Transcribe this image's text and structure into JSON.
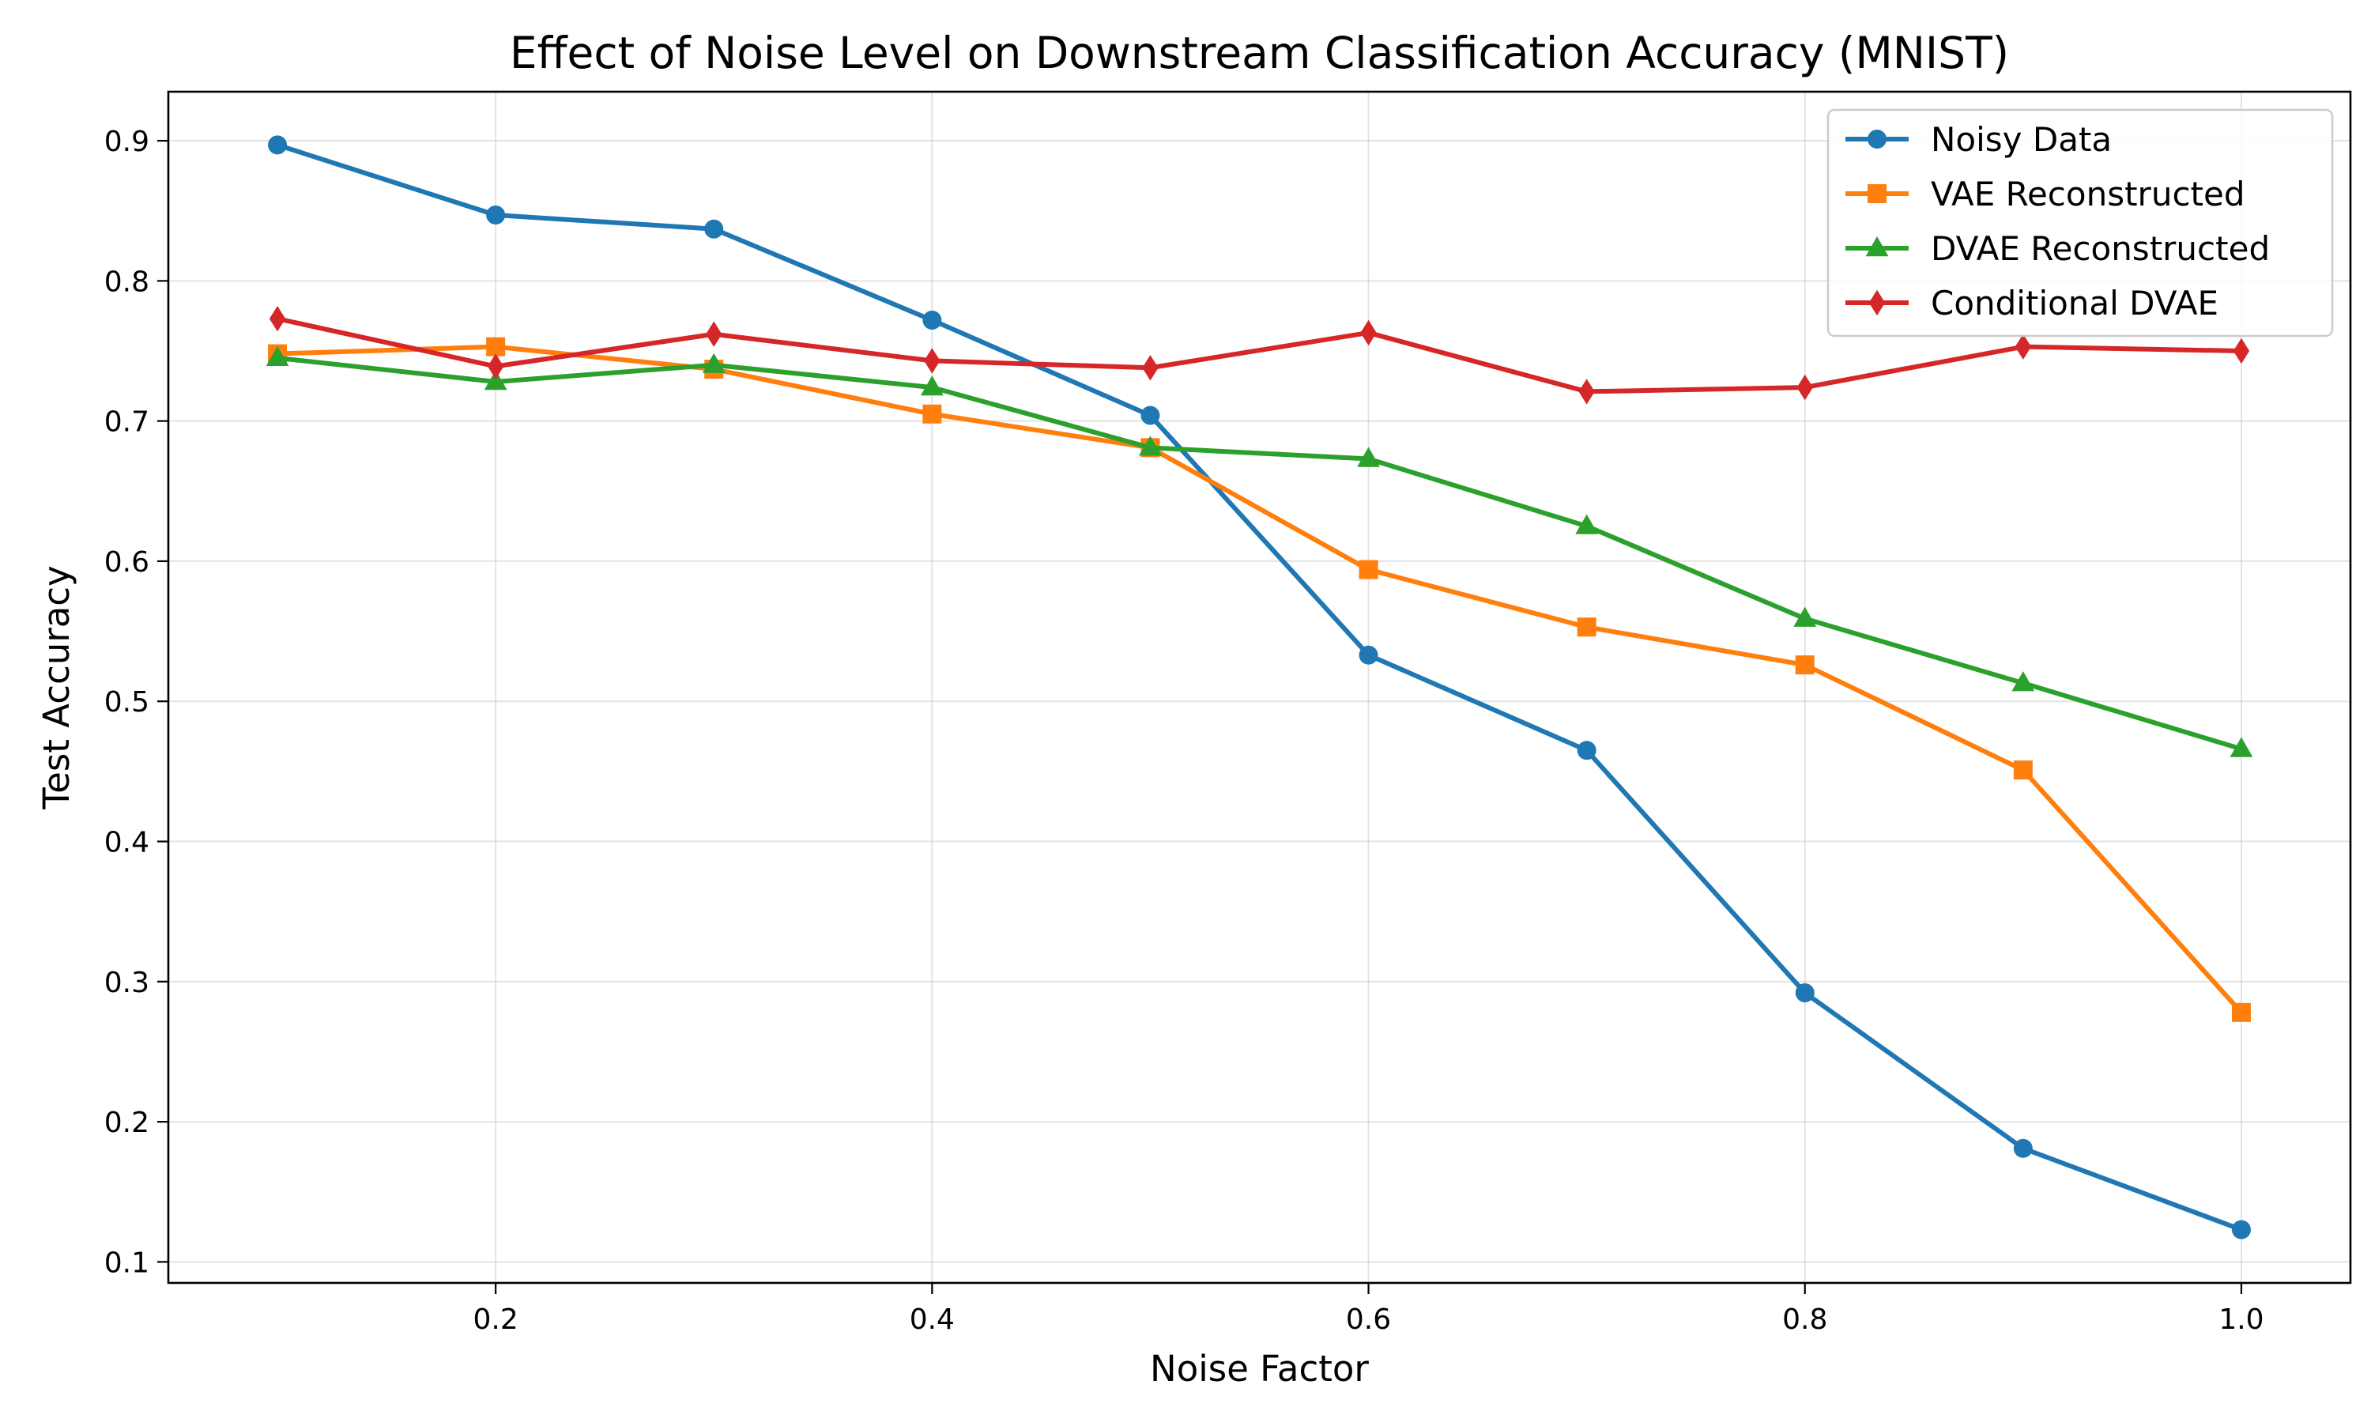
{
  "chart_data": {
    "type": "line",
    "title": "Effect of Noise Level on Downstream Classification Accuracy (MNIST)",
    "xlabel": "Noise Factor",
    "ylabel": "Test Accuracy",
    "xlim": [
      0.05,
      1.05
    ],
    "ylim": [
      0.085,
      0.935
    ],
    "x_ticks": [
      0.2,
      0.4,
      0.6,
      0.8,
      1.0
    ],
    "x_tick_labels": [
      "0.2",
      "0.4",
      "0.6",
      "0.8",
      "1.0"
    ],
    "y_ticks": [
      0.1,
      0.2,
      0.3,
      0.4,
      0.5,
      0.6,
      0.7,
      0.8,
      0.9
    ],
    "y_tick_labels": [
      "0.1",
      "0.2",
      "0.3",
      "0.4",
      "0.5",
      "0.6",
      "0.7",
      "0.8",
      "0.9"
    ],
    "grid": true,
    "legend_position": "top-right",
    "x": [
      0.1,
      0.2,
      0.3,
      0.4,
      0.5,
      0.6,
      0.7,
      0.8,
      0.9,
      1.0
    ],
    "series": [
      {
        "name": "Noisy Data",
        "color": "#1f77b4",
        "marker": "circle",
        "values": [
          0.897,
          0.847,
          0.837,
          0.772,
          0.704,
          0.533,
          0.465,
          0.292,
          0.181,
          0.123
        ]
      },
      {
        "name": "VAE Reconstructed",
        "color": "#ff7f0e",
        "marker": "square",
        "values": [
          0.748,
          0.753,
          0.737,
          0.705,
          0.681,
          0.594,
          0.553,
          0.526,
          0.451,
          0.278
        ]
      },
      {
        "name": "DVAE Reconstructed",
        "color": "#2ca02c",
        "marker": "triangle",
        "values": [
          0.745,
          0.728,
          0.74,
          0.724,
          0.681,
          0.673,
          0.625,
          0.559,
          0.513,
          0.466
        ]
      },
      {
        "name": "Conditional DVAE",
        "color": "#d62728",
        "marker": "diamond",
        "values": [
          0.773,
          0.739,
          0.762,
          0.743,
          0.738,
          0.763,
          0.721,
          0.724,
          0.753,
          0.75
        ]
      }
    ]
  }
}
